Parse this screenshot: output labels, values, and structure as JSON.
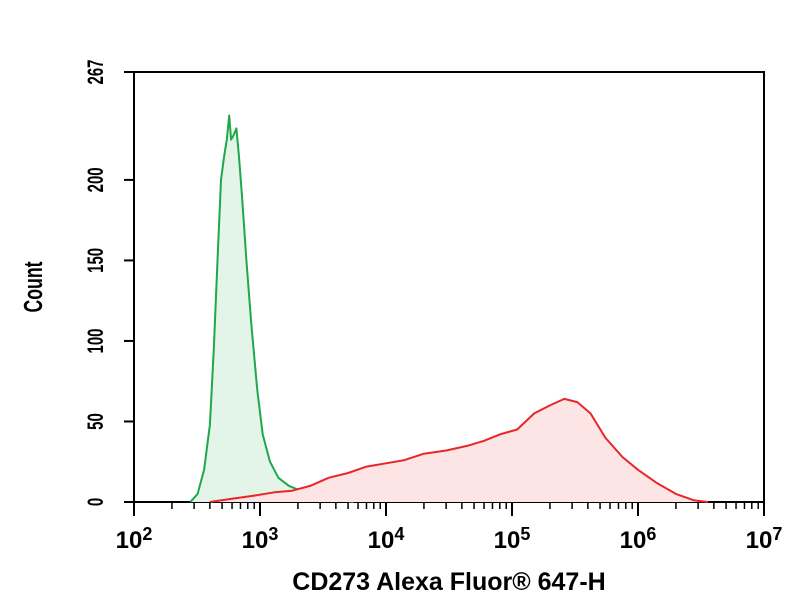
{
  "chart_data": {
    "type": "area",
    "xlabel": "CD273 Alexa Fluor® 647-H",
    "ylabel": "Count",
    "x_scale": "log",
    "xlim": [
      100,
      10000000
    ],
    "ylim": [
      0,
      267
    ],
    "x_ticks": [
      {
        "value": 100,
        "base": "10",
        "exp": "2"
      },
      {
        "value": 1000,
        "base": "10",
        "exp": "3"
      },
      {
        "value": 10000,
        "base": "10",
        "exp": "4"
      },
      {
        "value": 100000,
        "base": "10",
        "exp": "5"
      },
      {
        "value": 1000000,
        "base": "10",
        "exp": "6"
      },
      {
        "value": 10000000,
        "base": "10",
        "exp": "7"
      }
    ],
    "y_ticks": [
      0,
      50,
      100,
      150,
      200,
      267
    ],
    "grid": false,
    "legend": "none",
    "series": [
      {
        "color": "#1fa84a",
        "fill": "#e3f4e8",
        "points": [
          [
            280,
            0
          ],
          [
            320,
            5
          ],
          [
            360,
            20
          ],
          [
            400,
            48
          ],
          [
            430,
            95
          ],
          [
            460,
            150
          ],
          [
            490,
            200
          ],
          [
            520,
            215
          ],
          [
            545,
            225
          ],
          [
            570,
            240
          ],
          [
            590,
            225
          ],
          [
            620,
            228
          ],
          [
            650,
            232
          ],
          [
            680,
            215
          ],
          [
            720,
            190
          ],
          [
            780,
            150
          ],
          [
            850,
            112
          ],
          [
            950,
            70
          ],
          [
            1050,
            42
          ],
          [
            1200,
            25
          ],
          [
            1400,
            15
          ],
          [
            1700,
            10
          ],
          [
            2100,
            7
          ],
          [
            2700,
            5
          ],
          [
            3500,
            3
          ],
          [
            4500,
            1
          ],
          [
            5500,
            0
          ]
        ]
      },
      {
        "color": "#e8262a",
        "fill": "#fde5e5",
        "points": [
          [
            400,
            0
          ],
          [
            600,
            2
          ],
          [
            900,
            4
          ],
          [
            1300,
            6
          ],
          [
            1800,
            7
          ],
          [
            2500,
            10
          ],
          [
            3500,
            15
          ],
          [
            5000,
            18
          ],
          [
            7000,
            22
          ],
          [
            10000,
            24
          ],
          [
            14000,
            26
          ],
          [
            20000,
            30
          ],
          [
            30000,
            32
          ],
          [
            45000,
            35
          ],
          [
            60000,
            38
          ],
          [
            80000,
            42
          ],
          [
            110000,
            45
          ],
          [
            150000,
            55
          ],
          [
            200000,
            60
          ],
          [
            260000,
            64
          ],
          [
            330000,
            62
          ],
          [
            420000,
            55
          ],
          [
            550000,
            40
          ],
          [
            750000,
            28
          ],
          [
            1000000,
            20
          ],
          [
            1400000,
            12
          ],
          [
            2000000,
            5
          ],
          [
            2800000,
            1
          ],
          [
            3600000,
            0
          ]
        ]
      }
    ]
  }
}
